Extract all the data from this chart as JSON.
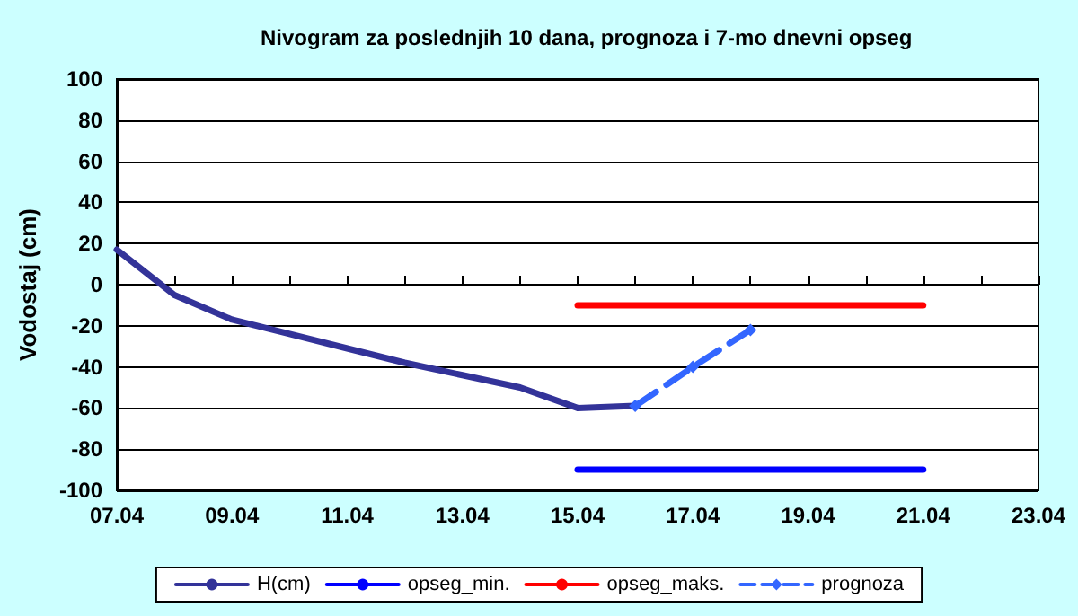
{
  "chart_data": {
    "type": "line",
    "title": "Nivogram za poslednjih 10 dana, prognoza i 7-mo dnevni opseg",
    "ylabel": "Vodostaj (cm)",
    "x": [
      "--04-07",
      "--04-08",
      "--04-09",
      "--04-10",
      "--04-11",
      "--04-12",
      "--04-13",
      "--04-14",
      "--04-15",
      "--04-16"
    ],
    "series": [
      {
        "name": "H(cm)",
        "color": "#333399",
        "values": [
          17,
          -5,
          -17,
          -24,
          -31,
          -38,
          -44,
          -50,
          -60,
          -59
        ]
      },
      {
        "name": "opseg_min.",
        "color": "#0000ff",
        "x": [
          "--04-15",
          "--04-21"
        ],
        "values": [
          -90,
          -90
        ]
      },
      {
        "name": "opseg_maks.",
        "color": "#ff0000",
        "x": [
          "--04-15",
          "--04-21"
        ],
        "values": [
          -10,
          -10
        ]
      },
      {
        "name": "prognoza",
        "color": "#3366ff",
        "x": [
          "--04-16",
          "--04-17",
          "--04-18"
        ],
        "values": [
          -59,
          -40,
          -22
        ],
        "marker": "diamond",
        "line_style": "dashed"
      }
    ],
    "xlim": [
      "--04-07",
      "--04-23"
    ],
    "xticks": [
      {
        "value": "--04-07",
        "label": "07.04"
      },
      {
        "value": "--04-08",
        "label": null
      },
      {
        "value": "--04-09",
        "label": "09.04"
      },
      {
        "value": "--04-10",
        "label": null
      },
      {
        "value": "--04-11",
        "label": "11.04"
      },
      {
        "value": "--04-12",
        "label": null
      },
      {
        "value": "--04-13",
        "label": "13.04"
      },
      {
        "value": "--04-14",
        "label": null
      },
      {
        "value": "--04-15",
        "label": "15.04"
      },
      {
        "value": "--04-16",
        "label": null
      },
      {
        "value": "--04-17",
        "label": "17.04"
      },
      {
        "value": "--04-18",
        "label": null
      },
      {
        "value": "--04-19",
        "label": "19.04"
      },
      {
        "value": "--04-20",
        "label": null
      },
      {
        "value": "--04-21",
        "label": "21.04"
      },
      {
        "value": "--04-22",
        "label": null
      },
      {
        "value": "--04-23",
        "label": "23.04"
      }
    ],
    "ylim": [
      -100,
      100
    ],
    "yticks": [
      -100,
      -80,
      -60,
      -40,
      -20,
      0,
      20,
      40,
      60,
      80,
      100
    ],
    "grid": "y",
    "legend": "bottom",
    "marker": "none",
    "line_style": "solid"
  }
}
